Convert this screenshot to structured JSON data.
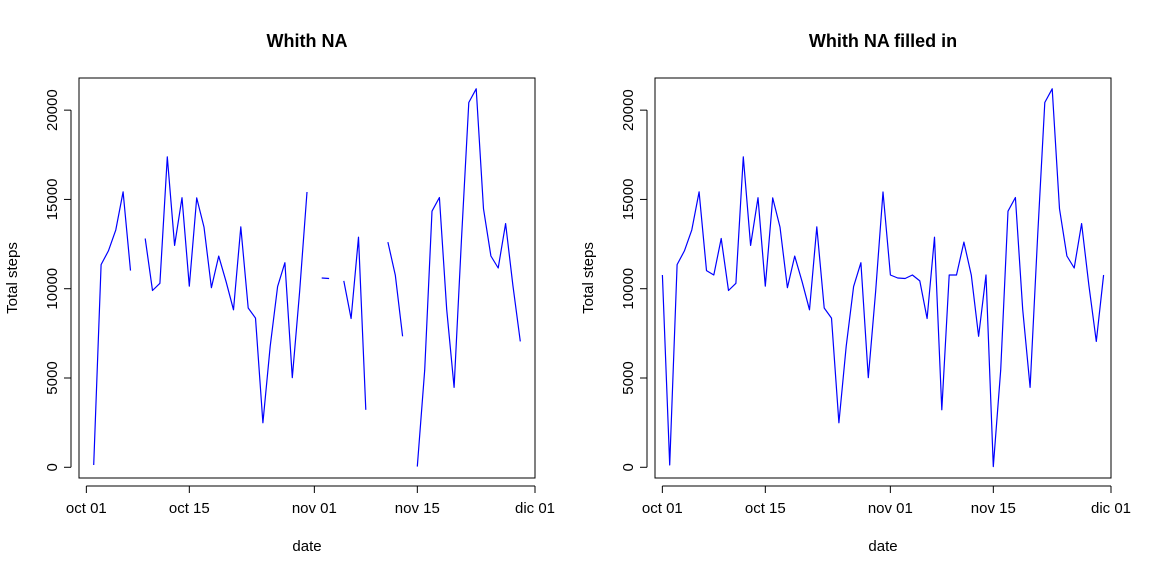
{
  "chart_data": [
    {
      "type": "line",
      "title": "Whith NA",
      "xlabel": "date",
      "ylabel": "Total steps",
      "line_color": "#0000ff",
      "grid": false,
      "xlim": [
        "2012-09-30",
        "2012-12-01"
      ],
      "ylim": [
        -600,
        21800
      ],
      "x_tick_labels": [
        "oct 01",
        "oct 15",
        "nov 01",
        "nov 15",
        "dic 01"
      ],
      "x_tick_dates": [
        "2012-10-01",
        "2012-10-15",
        "2012-11-01",
        "2012-11-15",
        "2012-12-01"
      ],
      "y_tick_labels": [
        "0",
        "5000",
        "10000",
        "15000",
        "20000"
      ],
      "y_tick_values": [
        0,
        5000,
        10000,
        15000,
        20000
      ],
      "x": [
        "2012-10-01",
        "2012-10-02",
        "2012-10-03",
        "2012-10-04",
        "2012-10-05",
        "2012-10-06",
        "2012-10-07",
        "2012-10-08",
        "2012-10-09",
        "2012-10-10",
        "2012-10-11",
        "2012-10-12",
        "2012-10-13",
        "2012-10-14",
        "2012-10-15",
        "2012-10-16",
        "2012-10-17",
        "2012-10-18",
        "2012-10-19",
        "2012-10-20",
        "2012-10-21",
        "2012-10-22",
        "2012-10-23",
        "2012-10-24",
        "2012-10-25",
        "2012-10-26",
        "2012-10-27",
        "2012-10-28",
        "2012-10-29",
        "2012-10-30",
        "2012-10-31",
        "2012-11-01",
        "2012-11-02",
        "2012-11-03",
        "2012-11-04",
        "2012-11-05",
        "2012-11-06",
        "2012-11-07",
        "2012-11-08",
        "2012-11-09",
        "2012-11-10",
        "2012-11-11",
        "2012-11-12",
        "2012-11-13",
        "2012-11-14",
        "2012-11-15",
        "2012-11-16",
        "2012-11-17",
        "2012-11-18",
        "2012-11-19",
        "2012-11-20",
        "2012-11-21",
        "2012-11-22",
        "2012-11-23",
        "2012-11-24",
        "2012-11-25",
        "2012-11-26",
        "2012-11-27",
        "2012-11-28",
        "2012-11-29",
        "2012-11-30"
      ],
      "series": [
        {
          "values": [
            null,
            126,
            11352,
            12116,
            13294,
            15420,
            11015,
            null,
            12811,
            9900,
            10304,
            17382,
            12426,
            15098,
            10139,
            15084,
            13452,
            10056,
            11829,
            10395,
            8821,
            13460,
            8918,
            8355,
            2492,
            6778,
            10119,
            11458,
            5018,
            9819,
            15414,
            null,
            10600,
            10571,
            null,
            10439,
            8334,
            12883,
            3219,
            null,
            null,
            12608,
            10765,
            7336,
            null,
            41,
            5441,
            14339,
            15110,
            8841,
            4472,
            12787,
            20427,
            21194,
            14478,
            11834,
            11162,
            13646,
            10183,
            7047,
            null
          ]
        }
      ]
    },
    {
      "type": "line",
      "title": "Whith NA filled in",
      "xlabel": "date",
      "ylabel": "Total steps",
      "line_color": "#0000ff",
      "grid": false,
      "xlim": [
        "2012-09-30",
        "2012-12-01"
      ],
      "ylim": [
        -600,
        21800
      ],
      "x_tick_labels": [
        "oct 01",
        "oct 15",
        "nov 01",
        "nov 15",
        "dic 01"
      ],
      "x_tick_dates": [
        "2012-10-01",
        "2012-10-15",
        "2012-11-01",
        "2012-11-15",
        "2012-12-01"
      ],
      "y_tick_labels": [
        "0",
        "5000",
        "10000",
        "15000",
        "20000"
      ],
      "y_tick_values": [
        0,
        5000,
        10000,
        15000,
        20000
      ],
      "x": [
        "2012-10-01",
        "2012-10-02",
        "2012-10-03",
        "2012-10-04",
        "2012-10-05",
        "2012-10-06",
        "2012-10-07",
        "2012-10-08",
        "2012-10-09",
        "2012-10-10",
        "2012-10-11",
        "2012-10-12",
        "2012-10-13",
        "2012-10-14",
        "2012-10-15",
        "2012-10-16",
        "2012-10-17",
        "2012-10-18",
        "2012-10-19",
        "2012-10-20",
        "2012-10-21",
        "2012-10-22",
        "2012-10-23",
        "2012-10-24",
        "2012-10-25",
        "2012-10-26",
        "2012-10-27",
        "2012-10-28",
        "2012-10-29",
        "2012-10-30",
        "2012-10-31",
        "2012-11-01",
        "2012-11-02",
        "2012-11-03",
        "2012-11-04",
        "2012-11-05",
        "2012-11-06",
        "2012-11-07",
        "2012-11-08",
        "2012-11-09",
        "2012-11-10",
        "2012-11-11",
        "2012-11-12",
        "2012-11-13",
        "2012-11-14",
        "2012-11-15",
        "2012-11-16",
        "2012-11-17",
        "2012-11-18",
        "2012-11-19",
        "2012-11-20",
        "2012-11-21",
        "2012-11-22",
        "2012-11-23",
        "2012-11-24",
        "2012-11-25",
        "2012-11-26",
        "2012-11-27",
        "2012-11-28",
        "2012-11-29",
        "2012-11-30"
      ],
      "series": [
        {
          "values": [
            10766,
            126,
            11352,
            12116,
            13294,
            15420,
            11015,
            10766,
            12811,
            9900,
            10304,
            17382,
            12426,
            15098,
            10139,
            15084,
            13452,
            10056,
            11829,
            10395,
            8821,
            13460,
            8918,
            8355,
            2492,
            6778,
            10119,
            11458,
            5018,
            9819,
            15414,
            10766,
            10600,
            10571,
            10766,
            10439,
            8334,
            12883,
            3219,
            10766,
            10766,
            12608,
            10765,
            7336,
            10766,
            41,
            5441,
            14339,
            15110,
            8841,
            4472,
            12787,
            20427,
            21194,
            14478,
            11834,
            11162,
            13646,
            10183,
            7047,
            10766
          ]
        }
      ]
    }
  ]
}
